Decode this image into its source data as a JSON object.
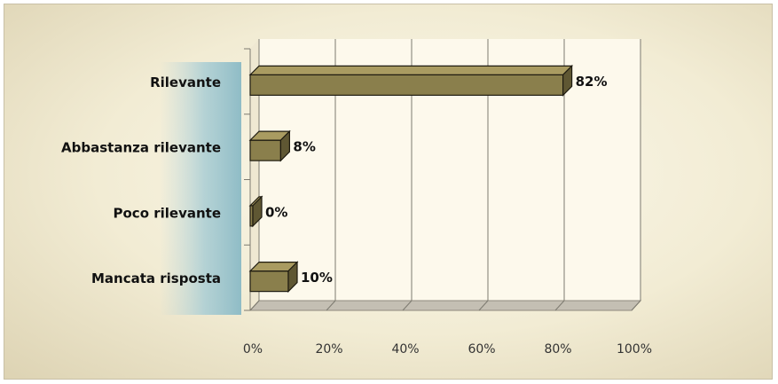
{
  "chart_data": {
    "type": "bar",
    "orientation": "horizontal",
    "categories": [
      "Rilevante",
      "Abbastanza rilevante",
      "Poco rilevante",
      "Mancata risposta"
    ],
    "values": [
      82,
      8,
      0,
      10
    ],
    "data_labels": [
      "82%",
      "8%",
      "0%",
      "10%"
    ],
    "x_ticks": [
      "0%",
      "20%",
      "40%",
      "60%",
      "80%",
      "100%"
    ],
    "xlim": [
      0,
      100
    ],
    "title": "",
    "xlabel": "",
    "ylabel": "",
    "grid": true,
    "legend": "none",
    "colors": {
      "bar_front": "#8a7f4c",
      "bar_top": "#a99b61",
      "bar_side": "#5f5733",
      "bar_edge": "#1e1b10",
      "plot_wall": "#fdf9ec",
      "floor": "#c4bfb3",
      "gridline": "#7d7a70",
      "label_text": "#111111"
    }
  }
}
